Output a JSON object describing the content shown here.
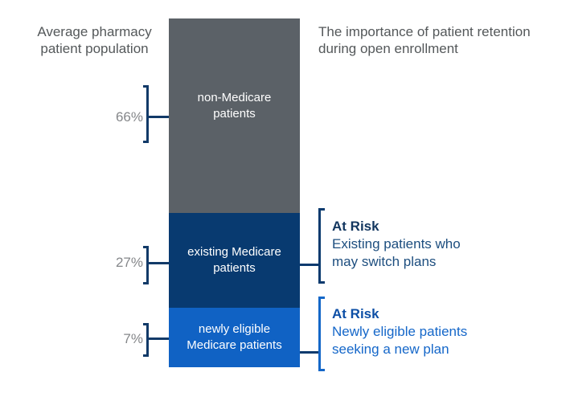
{
  "chart_data": {
    "type": "bar",
    "subtype": "single-stacked-column",
    "title": "Average pharmacy patient population",
    "right_title": "The importance of patient retention during open enrollment",
    "unit": "%",
    "total": 100,
    "legend_position": "inside-segments",
    "grid": false,
    "segments": [
      {
        "label": "non-Medicare patients",
        "value": 66,
        "value_label": "66%",
        "color": "#5b6167"
      },
      {
        "label": "existing Medicare patients",
        "value": 27,
        "value_label": "27%",
        "color": "#083a70"
      },
      {
        "label": "newly eligible Medicare patients",
        "value": 7,
        "value_label": "7%",
        "color": "#1062c4"
      }
    ]
  },
  "annotations": [
    {
      "heading": "At Risk",
      "body": "Existing patients who may switch plans",
      "heading_color": "#12365f",
      "body_color": "#1d4e7f",
      "bracket_color": "#0b3a6e",
      "linked_segment": "existing Medicare patients"
    },
    {
      "heading": "At Risk",
      "body": "Newly eligible patients seeking a new plan",
      "heading_color": "#0d4fa6",
      "body_color": "#1567c9",
      "bracket_color": "#1467c8",
      "linked_segment": "newly eligible Medicare patients"
    }
  ],
  "colors": {
    "background": "#ffffff",
    "title_text": "#54585a",
    "pct_text": "#85878a",
    "segment_label_text": "#ffffff",
    "left_bracket": "#123a68",
    "connector": "#0b3a6e"
  }
}
